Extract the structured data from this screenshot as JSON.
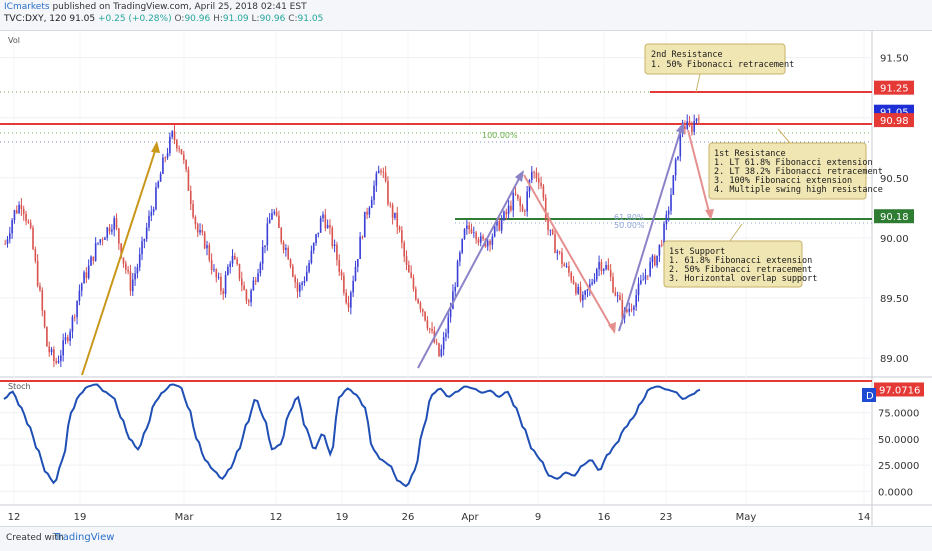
{
  "header": {
    "publisher": "ICmarkets",
    "published_text": "published on TradingView.com, April 25, 2018 02:41 EST",
    "symbol": "TVC:DXY, 120",
    "last": "91.05",
    "change": "+0.25 (+0.28%)",
    "o_label": "O:",
    "o": "90.96",
    "h_label": "H:",
    "h": "91.09",
    "l_label": "L:",
    "l": "90.96",
    "c_label": "C:",
    "c": "91.05"
  },
  "footer": {
    "created_with": "Created with",
    "logo": "TradingView"
  },
  "price_panel": {
    "label": "Vol",
    "ylim": [
      88.85,
      91.73
    ],
    "ticks": [
      "91.50",
      "91.00",
      "90.50",
      "90.00",
      "89.50",
      "89.00"
    ],
    "tick_values": [
      91.5,
      91.0,
      90.5,
      90.0,
      89.5,
      89.0
    ],
    "tags": [
      {
        "text": "91.25",
        "value": 91.25,
        "color": "#e53935"
      },
      {
        "text": "91.05",
        "value": 91.05,
        "color": "#1e2fd6"
      },
      {
        "text": "90.98",
        "value": 90.98,
        "color": "#e53935"
      },
      {
        "text": "90.18",
        "value": 90.18,
        "color": "#2e7d32"
      }
    ],
    "fib_labels": [
      {
        "text": "100.00%",
        "color": "#6ab04c"
      },
      {
        "text": "61.80%",
        "color": "#8fa6d9"
      },
      {
        "text": "50.00%",
        "color": "#8fa6d9"
      }
    ],
    "annotations": {
      "resistance2": [
        "2nd Resistance",
        "1. 50% Fibonacci retracement"
      ],
      "resistance1": [
        "1st Resistance",
        "1. LT 61.8% Fibonacci extension",
        "2. LT 38.2% Fibonacci retracement",
        "3. 100% Fibonacci extension",
        "4. Multiple swing high resistance"
      ],
      "support1": [
        "1st Support",
        "1. 61.8% Fibonacci extension",
        "2. 50% Fibonacci retracement",
        "3. Horizontal overlap support"
      ]
    }
  },
  "stoch_panel": {
    "label": "Stoch",
    "ylim": [
      -12,
      108
    ],
    "ticks": [
      "75.0000",
      "50.0000",
      "25.0000",
      "0.0000"
    ],
    "tick_values": [
      75,
      50,
      25,
      0
    ],
    "tag": {
      "text": "97.0716",
      "value": 97.0716,
      "color": "#e53935"
    },
    "d_badge": "D"
  },
  "x_axis": {
    "labels": [
      "12",
      "19",
      "Mar",
      "12",
      "19",
      "26",
      "Apr",
      "9",
      "16",
      "23",
      "May",
      "14"
    ]
  },
  "chart_data": {
    "type": "candlestick",
    "symbol": "TVC:DXY",
    "timeframe": "120",
    "ylim": [
      88.85,
      91.73
    ],
    "levels": [
      {
        "name": "2nd Resistance",
        "value": 91.25,
        "color": "#e53935"
      },
      {
        "name": "1st Resistance",
        "value": 90.98,
        "color": "#e53935"
      },
      {
        "name": "1st Support",
        "value": 90.18,
        "color": "#2e7d32"
      }
    ],
    "close_path": [
      [
        89.95,
        90.2
      ],
      [
        90.3,
        90.05
      ],
      [
        89.6,
        89.1
      ],
      [
        88.95,
        89.1
      ],
      [
        89.3,
        89.6
      ],
      [
        89.75,
        89.95
      ],
      [
        90.05,
        90.15
      ],
      [
        89.85,
        89.6
      ],
      [
        89.8,
        90.1
      ],
      [
        90.35,
        90.65
      ],
      [
        90.85,
        90.75
      ],
      [
        90.4,
        90.05
      ],
      [
        89.95,
        89.7
      ],
      [
        89.55,
        89.85
      ],
      [
        89.7,
        89.45
      ],
      [
        89.7,
        89.95
      ],
      [
        90.25,
        90.0
      ],
      [
        89.85,
        89.55
      ],
      [
        89.7,
        89.95
      ],
      [
        90.2,
        90.0
      ],
      [
        89.75,
        89.45
      ],
      [
        89.8,
        90.15
      ],
      [
        90.4,
        90.6
      ],
      [
        90.25,
        90.1
      ],
      [
        89.75,
        89.55
      ],
      [
        89.4,
        89.2
      ],
      [
        89.0,
        89.3
      ],
      [
        89.7,
        90.05
      ],
      [
        90.1,
        89.95
      ],
      [
        90.0,
        90.1
      ],
      [
        90.2,
        90.35
      ],
      [
        90.2,
        90.55
      ],
      [
        90.5,
        90.05
      ],
      [
        89.9,
        89.75
      ],
      [
        89.65,
        89.45
      ],
      [
        89.6,
        89.8
      ],
      [
        89.75,
        89.55
      ],
      [
        89.35,
        89.45
      ],
      [
        89.6,
        89.75
      ],
      [
        89.85,
        90.1
      ],
      [
        90.5,
        90.95
      ],
      [
        90.9,
        91.05
      ]
    ],
    "stoch_d": [
      [
        88,
        95
      ],
      [
        80,
        62
      ],
      [
        40,
        18
      ],
      [
        8,
        30
      ],
      [
        75,
        92
      ],
      [
        100,
        102
      ],
      [
        95,
        90
      ],
      [
        70,
        50
      ],
      [
        40,
        60
      ],
      [
        85,
        95
      ],
      [
        102,
        100
      ],
      [
        80,
        50
      ],
      [
        30,
        20
      ],
      [
        12,
        22
      ],
      [
        40,
        65
      ],
      [
        88,
        70
      ],
      [
        40,
        45
      ],
      [
        75,
        90
      ],
      [
        60,
        40
      ],
      [
        55,
        35
      ],
      [
        90,
        98
      ],
      [
        92,
        80
      ],
      [
        40,
        30
      ],
      [
        25,
        10
      ],
      [
        5,
        20
      ],
      [
        60,
        92
      ],
      [
        98,
        90
      ],
      [
        95,
        100
      ],
      [
        98,
        94
      ],
      [
        96,
        90
      ],
      [
        95,
        80
      ],
      [
        60,
        40
      ],
      [
        30,
        15
      ],
      [
        12,
        18
      ],
      [
        15,
        25
      ],
      [
        30,
        20
      ],
      [
        35,
        45
      ],
      [
        60,
        70
      ],
      [
        85,
        98
      ],
      [
        100,
        97
      ],
      [
        95,
        88
      ],
      [
        92,
        97
      ]
    ]
  }
}
